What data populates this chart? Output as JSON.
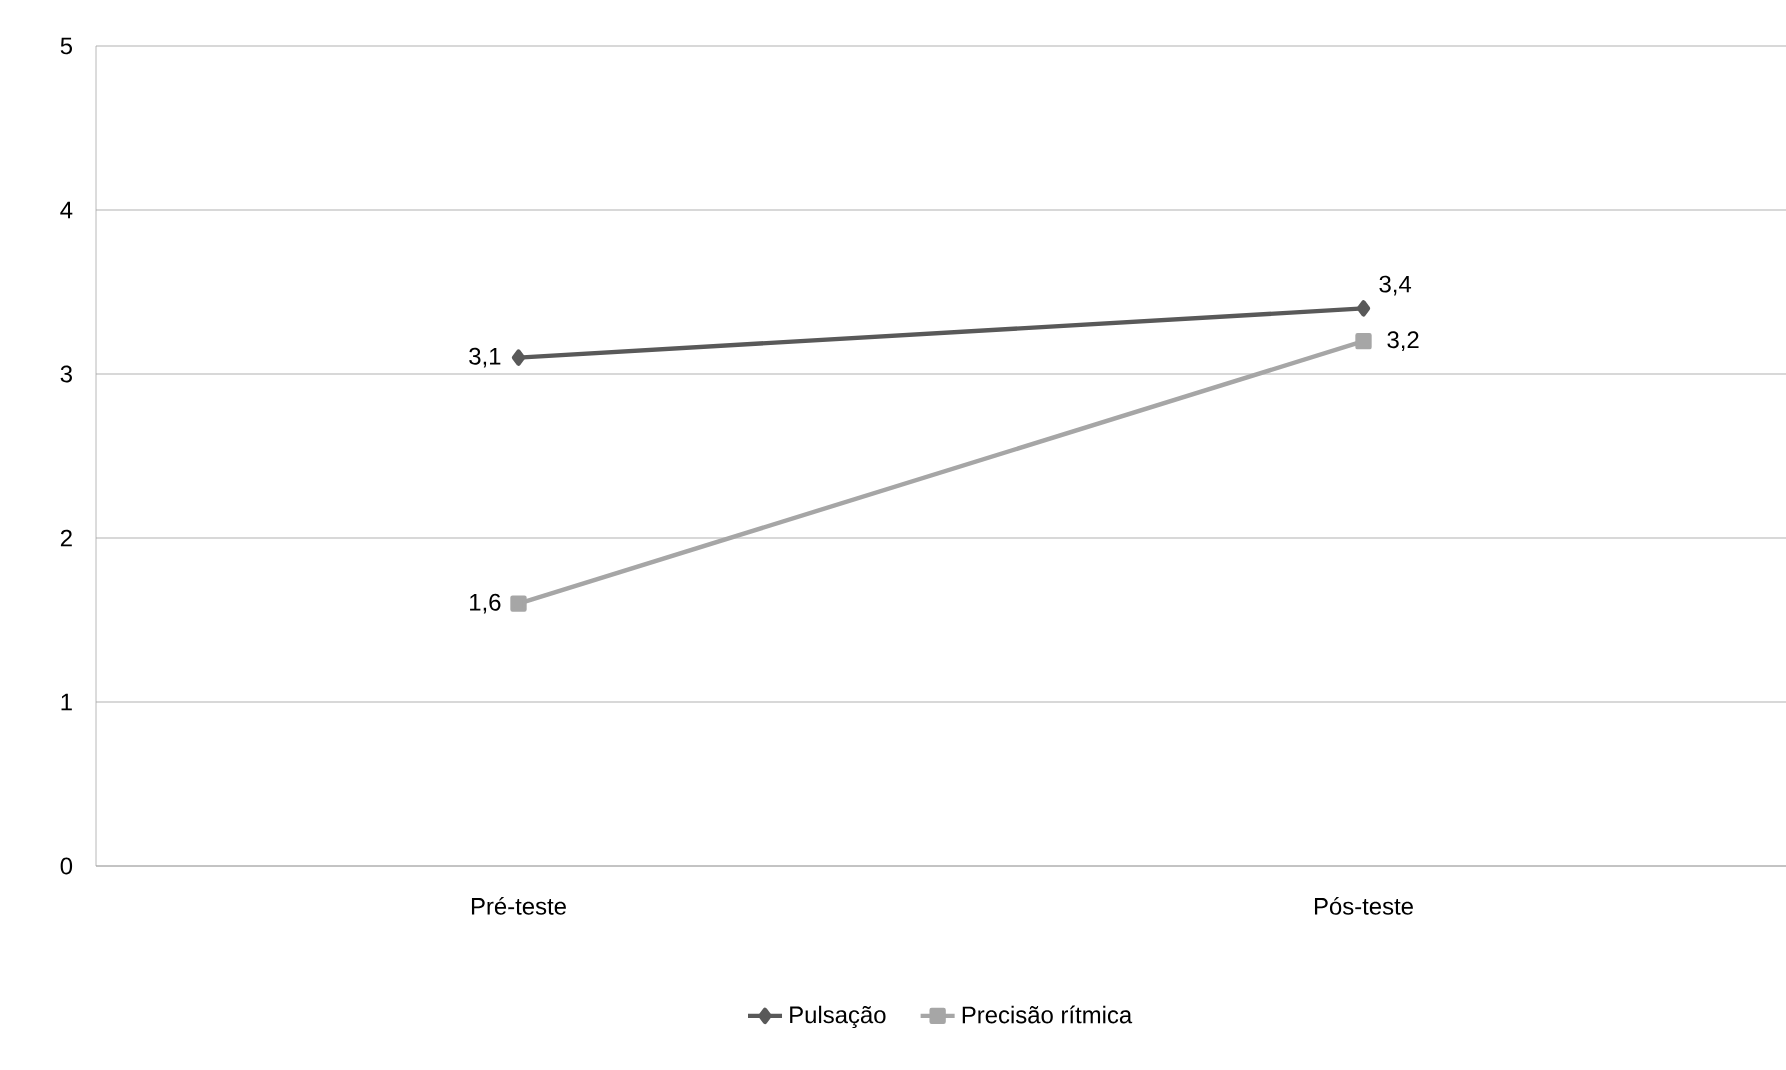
{
  "chart_data": {
    "type": "line",
    "categories": [
      "Pré-teste",
      "Pós-teste"
    ],
    "series": [
      {
        "name": "Pulsação",
        "color": "#595959",
        "marker": "diamond",
        "values": [
          3.1,
          3.4
        ],
        "value_labels": [
          "3,1",
          "3,4"
        ]
      },
      {
        "name": "Precisão rítmica",
        "color": "#a6a6a6",
        "marker": "square",
        "values": [
          1.6,
          3.2
        ],
        "value_labels": [
          "1,6",
          "3,2"
        ]
      }
    ],
    "ylim": [
      0,
      5
    ],
    "yticks": [
      0,
      1,
      2,
      3,
      4,
      5
    ],
    "grid": "y",
    "legend": "bottom",
    "line_style": "solid"
  }
}
